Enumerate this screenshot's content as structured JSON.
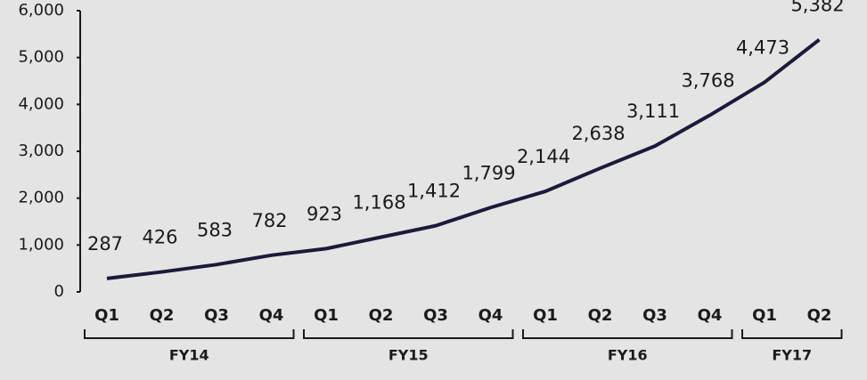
{
  "chart_data": {
    "type": "line",
    "categories": [
      "Q1",
      "Q2",
      "Q3",
      "Q4",
      "Q1",
      "Q2",
      "Q3",
      "Q4",
      "Q1",
      "Q2",
      "Q3",
      "Q4",
      "Q1",
      "Q2"
    ],
    "category_groups": [
      "FY14",
      "FY14",
      "FY14",
      "FY14",
      "FY15",
      "FY15",
      "FY15",
      "FY15",
      "FY16",
      "FY16",
      "FY16",
      "FY16",
      "FY17",
      "FY17"
    ],
    "series": [
      {
        "color": "#1b1a38",
        "values": [
          287,
          426,
          583,
          782,
          923,
          1168,
          1412,
          1799,
          2144,
          2638,
          3111,
          3768,
          4473,
          5382
        ],
        "value_labels": [
          "287",
          "426",
          "583",
          "782",
          "923",
          "1,168",
          "1,412",
          "1,799",
          "2,144",
          "2,638",
          "3,111",
          "3,768",
          "4,473",
          "5,382"
        ]
      }
    ],
    "ylim": [
      0,
      6000
    ],
    "yticks": [
      0,
      {
        "value": 1000,
        "label": "1,000"
      },
      {
        "value": 2000,
        "label": "2,000"
      },
      {
        "value": 3000,
        "label": "3,000"
      },
      {
        "value": 4000,
        "label": "4,000"
      },
      {
        "value": 5000,
        "label": "5,000"
      },
      {
        "value": 6000,
        "label": "6,000"
      }
    ]
  }
}
